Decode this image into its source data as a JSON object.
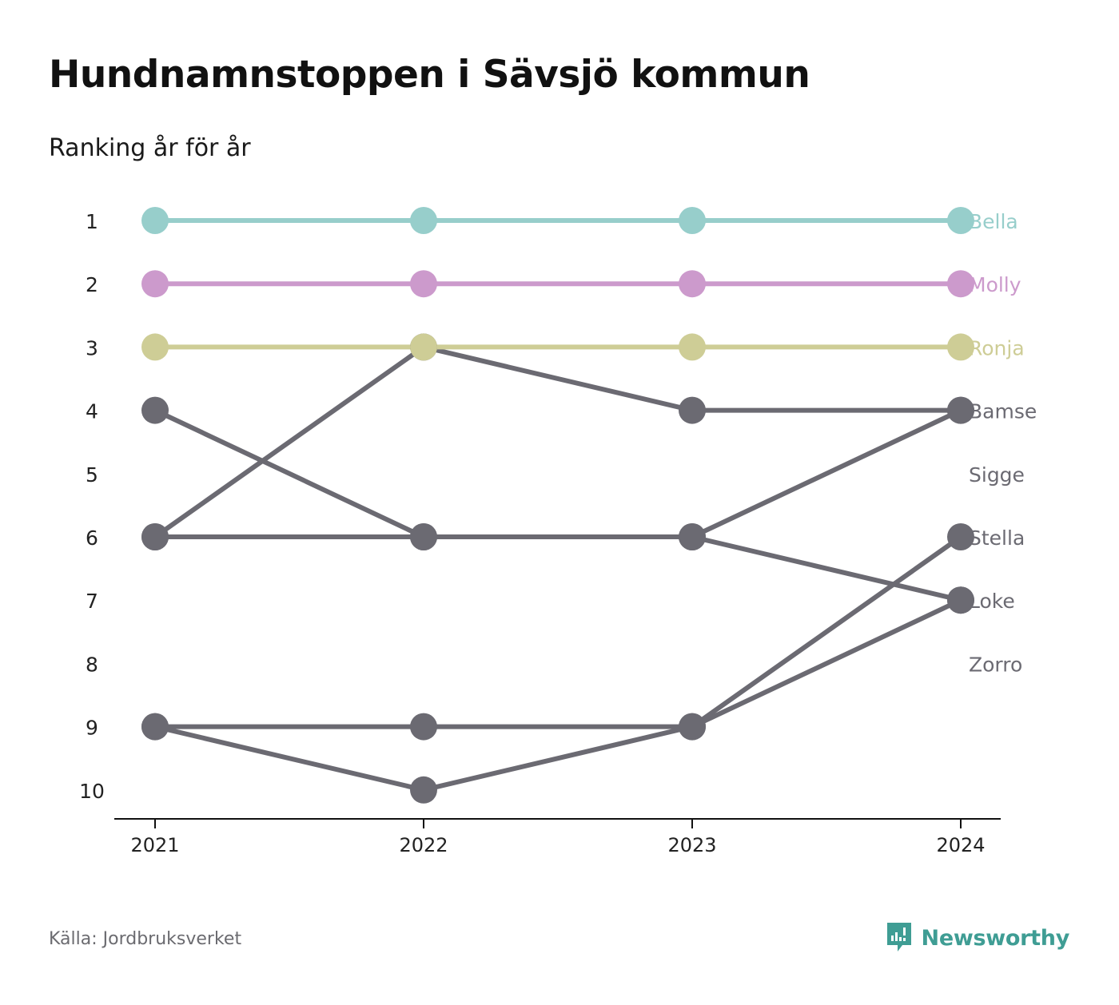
{
  "title": "Hundnamnstoppen i Sävsjö kommun",
  "subtitle": "Ranking år för år",
  "source": "Källa: Jordbruksverket",
  "brand": {
    "name": "Newsworthy",
    "icon": "newsworthy-logo-icon",
    "color": "#3f9d94"
  },
  "chart_data": {
    "type": "line",
    "title": "Hundnamnstoppen i Sävsjö kommun",
    "subtitle": "Ranking år för år",
    "x": [
      "2021",
      "2022",
      "2023",
      "2024"
    ],
    "y_ticks": [
      "1",
      "2",
      "3",
      "4",
      "5",
      "6",
      "7",
      "8",
      "9",
      "10"
    ],
    "ylim": [
      1,
      10
    ],
    "y_inverted": true,
    "grid": false,
    "legend": "direct labels at right end of lines",
    "series": [
      {
        "name": "Bella",
        "color": "#97cecb",
        "values": [
          1,
          1,
          1,
          1
        ]
      },
      {
        "name": "Molly",
        "color": "#cc9acc",
        "values": [
          2,
          2,
          2,
          2
        ]
      },
      {
        "name": "Ronja",
        "color": "#cecd96",
        "values": [
          3,
          3,
          3,
          3
        ]
      },
      {
        "name": "Bamse",
        "color": "#6b6a72",
        "values": [
          6,
          3,
          4,
          4
        ]
      },
      {
        "name": "Sigge",
        "color": "#6b6a72",
        "values": [
          null,
          null,
          null,
          null
        ]
      },
      {
        "name": "Stella",
        "color": "#6b6a72",
        "values": [
          9,
          9,
          9,
          6
        ]
      },
      {
        "name": "Loke",
        "color": "#6b6a72",
        "values": [
          4,
          6,
          6,
          7
        ]
      },
      {
        "name": "Zorro",
        "color": "#6b6a72",
        "values": [
          9,
          10,
          9,
          7
        ]
      }
    ],
    "extra_segments": [
      {
        "from": [
          "2021",
          6
        ],
        "to": [
          "2022",
          6
        ]
      },
      {
        "from": [
          "2023",
          6
        ],
        "to": [
          "2024",
          4
        ]
      }
    ]
  }
}
